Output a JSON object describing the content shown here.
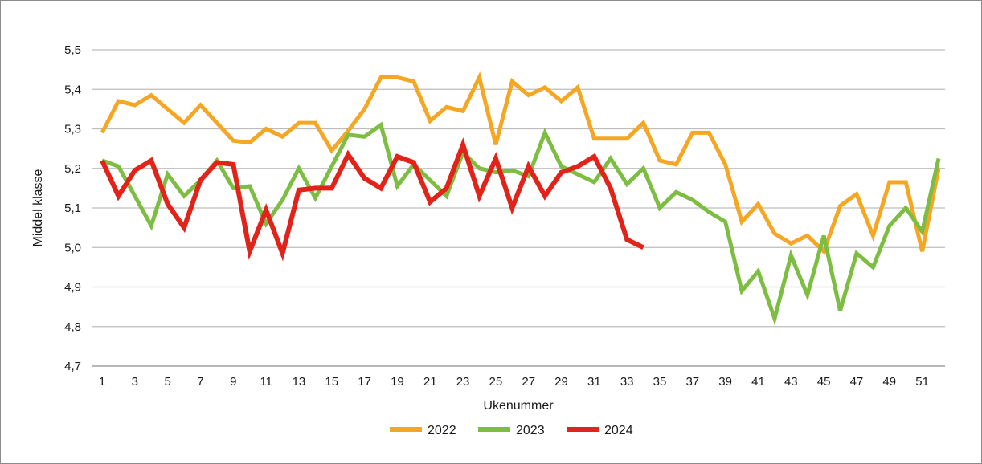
{
  "chart_data": {
    "type": "line",
    "title": "",
    "xlabel": "Ukenummer",
    "ylabel": "Middel klasse",
    "ylim": [
      4.7,
      5.5
    ],
    "yticks": [
      "4,7",
      "4,8",
      "4,9",
      "5,0",
      "5,1",
      "5,2",
      "5,3",
      "5,4",
      "5,5"
    ],
    "xlim": [
      1,
      52
    ],
    "xticks": [
      "1",
      "3",
      "5",
      "7",
      "9",
      "11",
      "13",
      "15",
      "17",
      "19",
      "21",
      "23",
      "25",
      "27",
      "29",
      "31",
      "33",
      "35",
      "37",
      "39",
      "41",
      "43",
      "45",
      "47",
      "49",
      "51"
    ],
    "grid": "horizontal",
    "legend_position": "bottom",
    "series": [
      {
        "name": "2022",
        "color": "#f5a623",
        "values": [
          5.29,
          5.37,
          5.36,
          5.385,
          5.35,
          5.315,
          5.36,
          5.315,
          5.27,
          5.265,
          5.3,
          5.28,
          5.315,
          5.315,
          5.245,
          5.295,
          5.35,
          5.43,
          5.43,
          5.42,
          5.32,
          5.355,
          5.345,
          5.43,
          5.26,
          5.42,
          5.385,
          5.405,
          5.37,
          5.405,
          5.275,
          5.275,
          5.275,
          5.315,
          5.22,
          5.21,
          5.29,
          5.29,
          5.21,
          5.065,
          5.11,
          5.035,
          5.01,
          5.03,
          4.99,
          5.105,
          5.135,
          5.03,
          5.165,
          5.165,
          4.99,
          5.2
        ]
      },
      {
        "name": "2023",
        "color": "#7dbe42",
        "values": [
          5.22,
          5.205,
          5.13,
          5.055,
          5.185,
          5.13,
          5.17,
          5.22,
          5.15,
          5.155,
          5.06,
          5.12,
          5.2,
          5.125,
          5.205,
          5.285,
          5.28,
          5.31,
          5.155,
          5.21,
          5.17,
          5.13,
          5.24,
          5.2,
          5.19,
          5.195,
          5.18,
          5.29,
          5.205,
          5.185,
          5.165,
          5.225,
          5.16,
          5.2,
          5.1,
          5.14,
          5.12,
          5.09,
          5.065,
          4.89,
          4.94,
          4.82,
          4.98,
          4.88,
          5.03,
          4.84,
          4.985,
          4.95,
          5.055,
          5.1,
          5.04,
          5.225
        ]
      },
      {
        "name": "2024",
        "color": "#e2231a",
        "values": [
          5.22,
          5.13,
          5.195,
          5.22,
          5.11,
          5.05,
          5.17,
          5.215,
          5.21,
          4.99,
          5.095,
          4.985,
          5.145,
          5.15,
          5.15,
          5.235,
          5.175,
          5.15,
          5.23,
          5.215,
          5.115,
          5.15,
          5.26,
          5.13,
          5.225,
          5.1,
          5.205,
          5.13,
          5.19,
          5.205,
          5.23,
          5.15,
          5.02,
          5.0
        ]
      }
    ]
  }
}
